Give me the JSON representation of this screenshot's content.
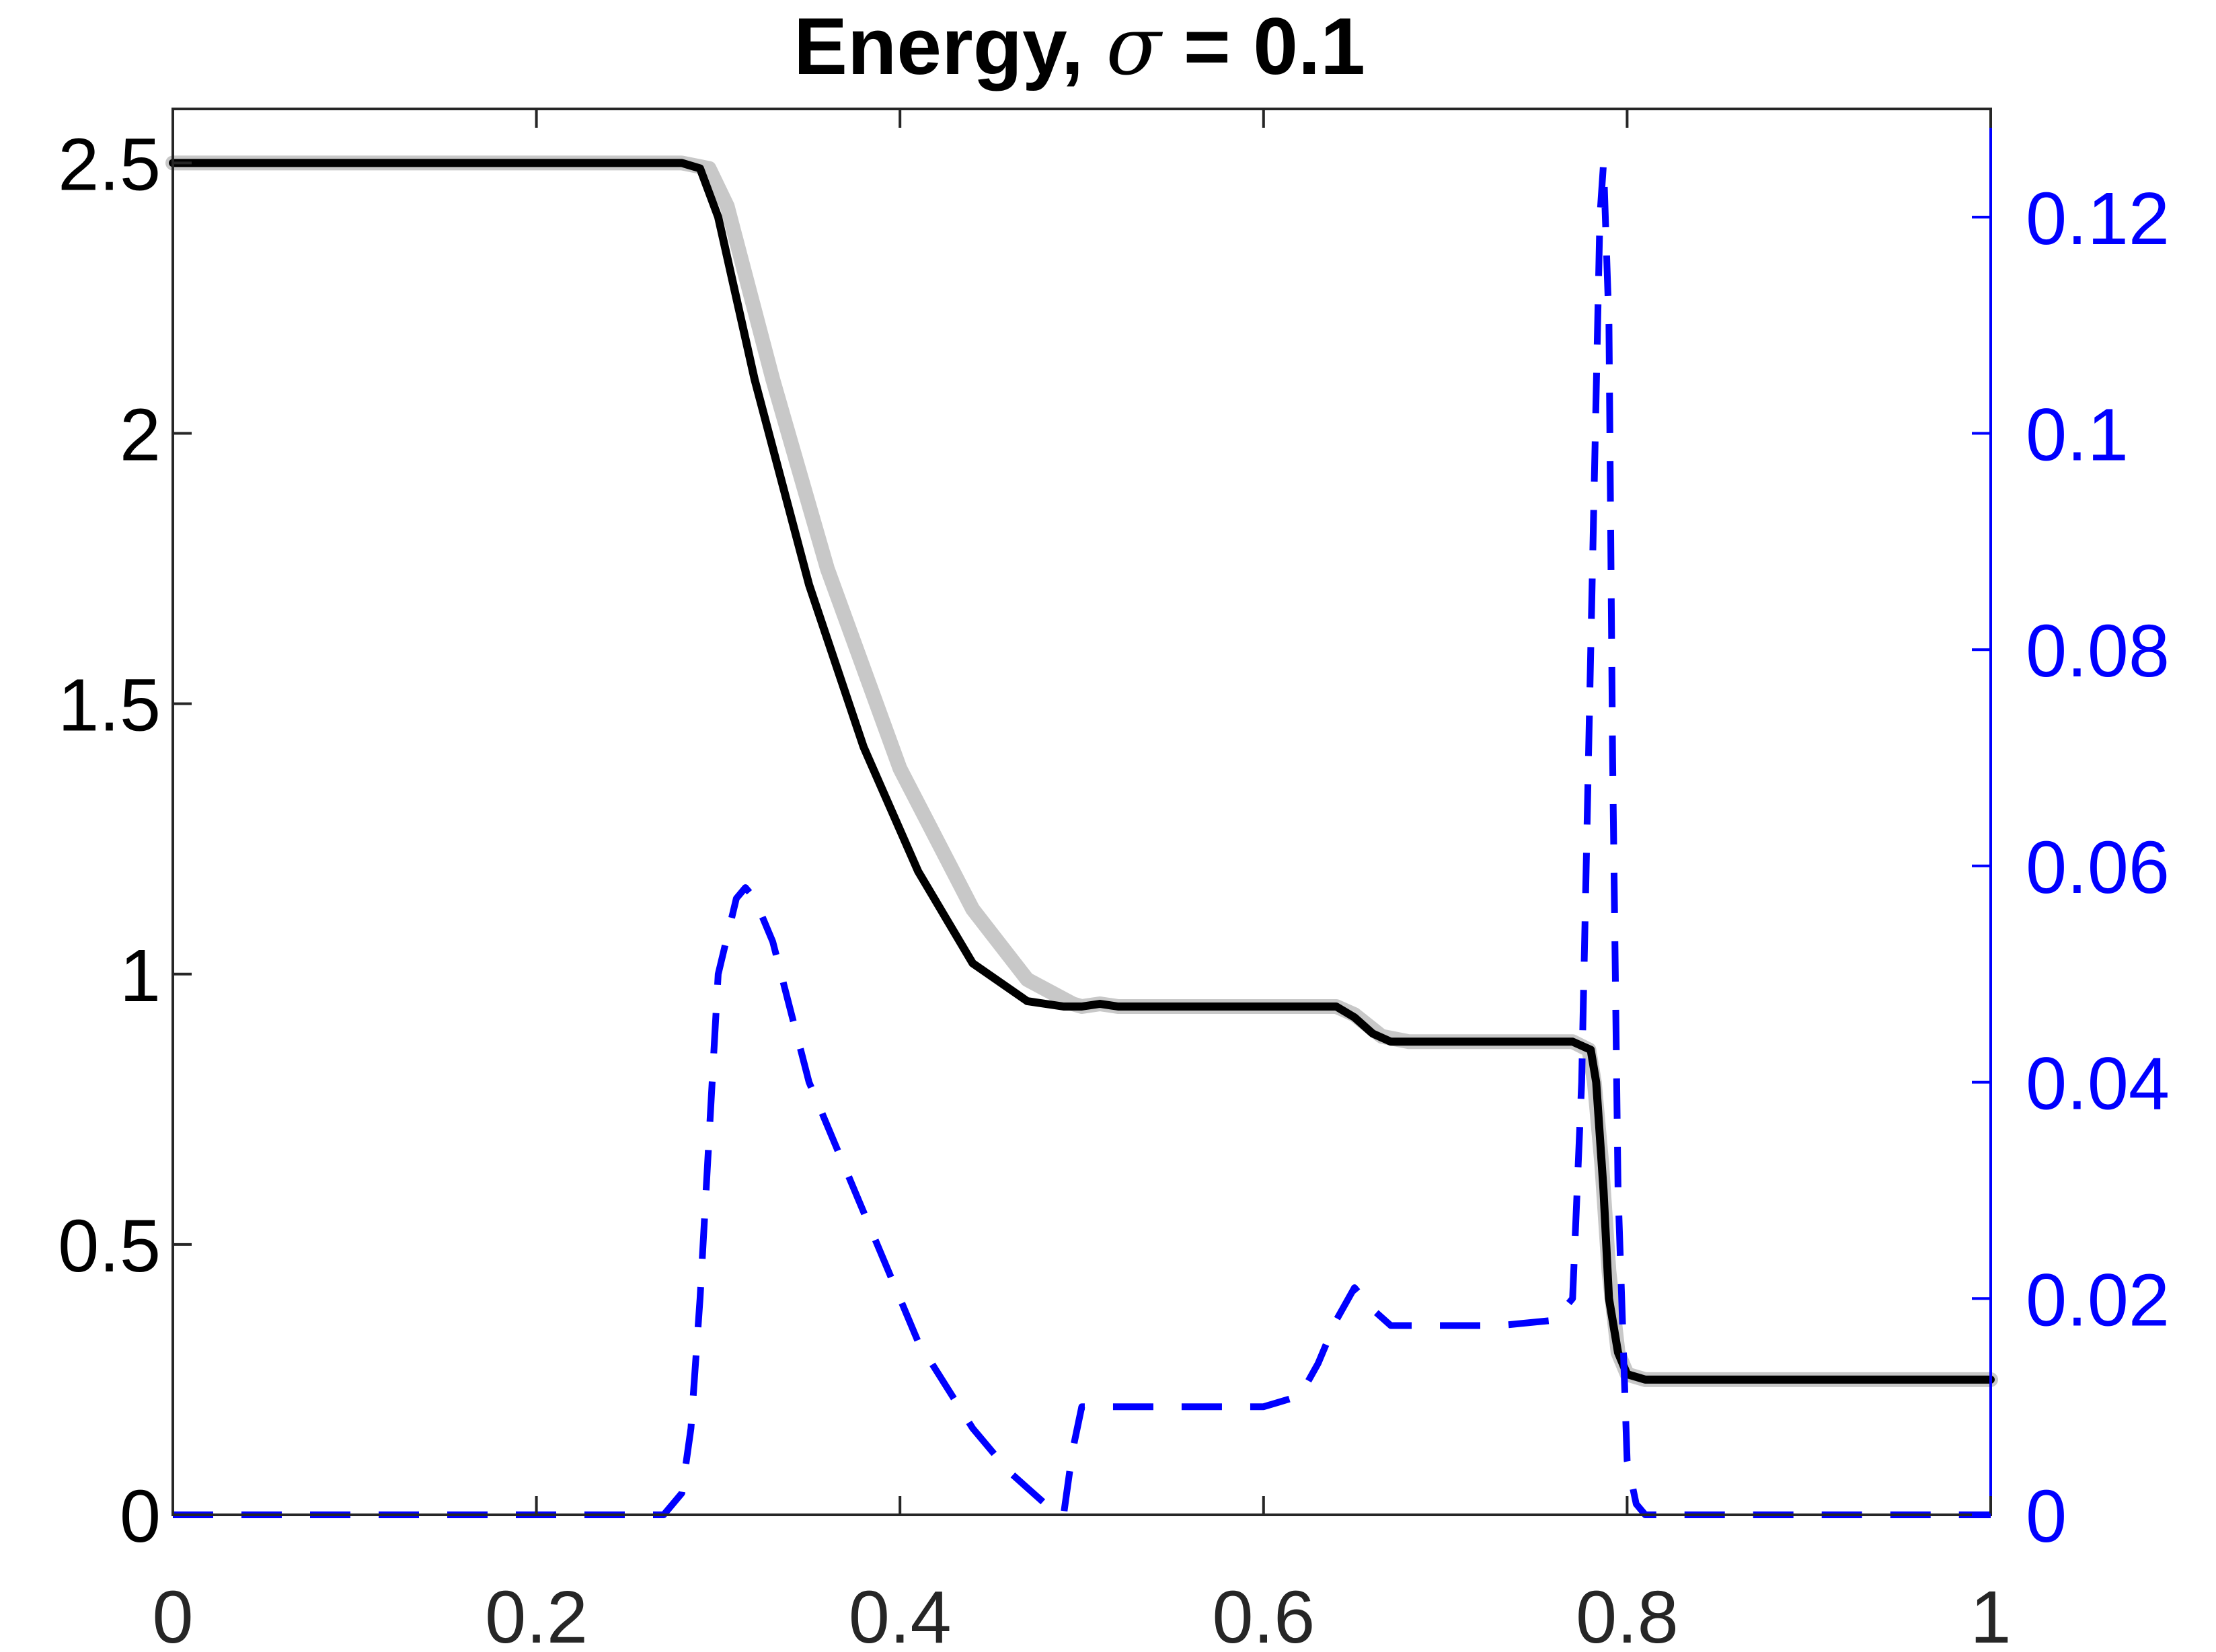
{
  "chart_data": {
    "type": "line",
    "title": {
      "prefix": "Energy, ",
      "symbol": "σ",
      "suffix": " = 0.1"
    },
    "xlabel": "",
    "ylabel_left": "",
    "ylabel_right": "",
    "xlim": [
      0,
      1
    ],
    "ylim_left": [
      0,
      2.6
    ],
    "ylim_right": [
      0,
      0.13
    ],
    "x_ticks": [
      "0",
      "0.2",
      "0.4",
      "0.6",
      "0.8",
      "1"
    ],
    "x_tick_values": [
      0,
      0.2,
      0.4,
      0.6,
      0.8,
      1
    ],
    "y_left_ticks": [
      "0",
      "0.5",
      "1",
      "1.5",
      "2",
      "2.5"
    ],
    "y_left_tick_values": [
      0,
      0.5,
      1,
      1.5,
      2,
      2.5
    ],
    "y_right_ticks": [
      "0",
      "0.02",
      "0.04",
      "0.06",
      "0.08",
      "0.1",
      "0.12"
    ],
    "y_right_tick_values": [
      0,
      0.02,
      0.04,
      0.06,
      0.08,
      0.1,
      0.12
    ],
    "grid": false,
    "legend": "none",
    "colors": {
      "energy": "#000000",
      "reference": "#c8c8c8",
      "error": "#0000ff",
      "right_axis": "#0000ff",
      "axes": "#262626"
    },
    "series": [
      {
        "axis": "left",
        "style": "solid-gray",
        "x": [
          0,
          0.28,
          0.295,
          0.305,
          0.33,
          0.36,
          0.4,
          0.44,
          0.47,
          0.495,
          0.5,
          0.51,
          0.52,
          0.64,
          0.65,
          0.665,
          0.68,
          0.77,
          0.779,
          0.782,
          0.786,
          0.79,
          0.795,
          0.8,
          0.81,
          1
        ],
        "y": [
          2.5,
          2.5,
          2.49,
          2.42,
          2.1,
          1.75,
          1.38,
          1.12,
          0.99,
          0.945,
          0.94,
          0.945,
          0.94,
          0.94,
          0.925,
          0.885,
          0.875,
          0.875,
          0.86,
          0.8,
          0.65,
          0.45,
          0.3,
          0.26,
          0.25,
          0.25
        ]
      },
      {
        "axis": "left",
        "style": "solid",
        "x": [
          0,
          0.28,
          0.29,
          0.3,
          0.32,
          0.35,
          0.38,
          0.41,
          0.44,
          0.47,
          0.49,
          0.5,
          0.51,
          0.52,
          0.64,
          0.65,
          0.66,
          0.67,
          0.77,
          0.78,
          0.783,
          0.787,
          0.79,
          0.795,
          0.8,
          0.81,
          1
        ],
        "y": [
          2.5,
          2.5,
          2.49,
          2.4,
          2.1,
          1.72,
          1.42,
          1.19,
          1.02,
          0.95,
          0.94,
          0.94,
          0.945,
          0.94,
          0.94,
          0.92,
          0.89,
          0.875,
          0.875,
          0.86,
          0.8,
          0.6,
          0.4,
          0.3,
          0.26,
          0.25,
          0.25
        ]
      },
      {
        "axis": "right",
        "style": "dashed",
        "x": [
          0,
          0.27,
          0.28,
          0.285,
          0.29,
          0.3,
          0.31,
          0.315,
          0.32,
          0.33,
          0.35,
          0.38,
          0.41,
          0.44,
          0.46,
          0.48,
          0.49,
          0.495,
          0.5,
          0.51,
          0.53,
          0.6,
          0.62,
          0.63,
          0.64,
          0.65,
          0.66,
          0.67,
          0.7,
          0.73,
          0.76,
          0.77,
          0.775,
          0.78,
          0.785,
          0.787,
          0.79,
          0.792,
          0.795,
          0.8,
          0.805,
          0.81,
          1
        ],
        "y": [
          0,
          0,
          0.002,
          0.008,
          0.02,
          0.05,
          0.057,
          0.058,
          0.057,
          0.053,
          0.04,
          0.028,
          0.016,
          0.008,
          0.004,
          0.001,
          0,
          0.006,
          0.01,
          0.01,
          0.01,
          0.01,
          0.011,
          0.014,
          0.018,
          0.021,
          0.019,
          0.0175,
          0.0175,
          0.0175,
          0.018,
          0.02,
          0.04,
          0.08,
          0.12,
          0.125,
          0.11,
          0.07,
          0.03,
          0.005,
          0.001,
          0,
          0
        ]
      }
    ]
  }
}
